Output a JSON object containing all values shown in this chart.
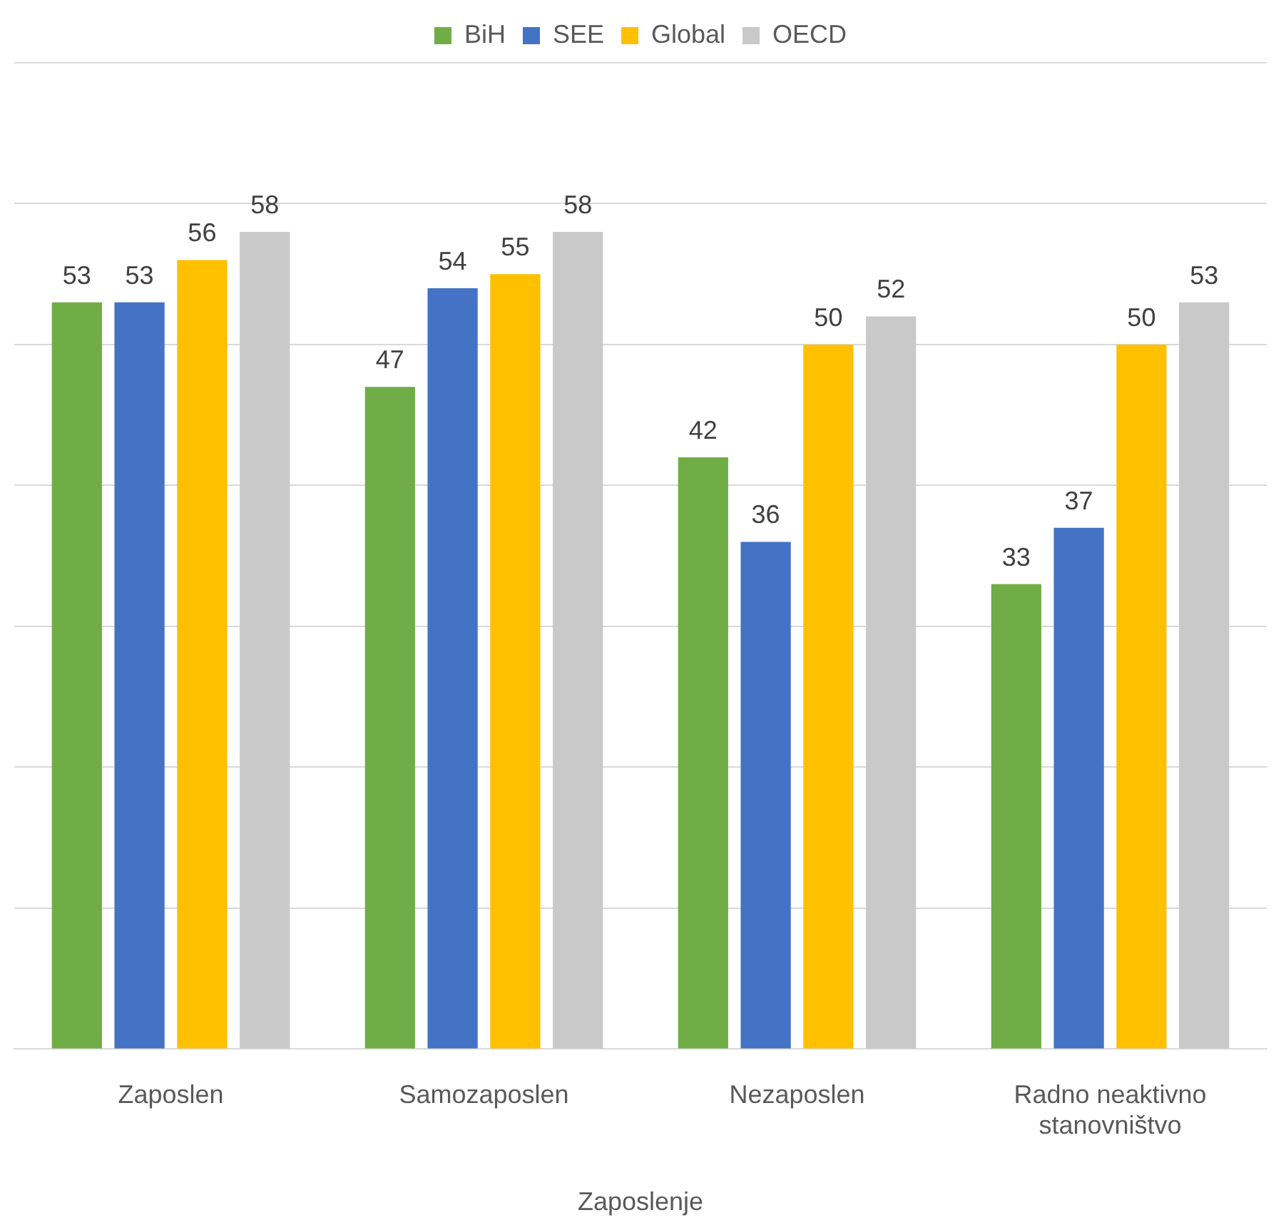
{
  "chart_data": {
    "type": "bar",
    "categories": [
      "Zaposlen",
      "Samozaposlen",
      "Nezaposlen",
      "Radno neaktivno stanovništvo"
    ],
    "series": [
      {
        "name": "BiH",
        "color": "#70ad47",
        "values": [
          53,
          47,
          42,
          33
        ]
      },
      {
        "name": "SEE",
        "color": "#4472c4",
        "values": [
          53,
          54,
          36,
          37
        ]
      },
      {
        "name": "Global",
        "color": "#ffc000",
        "values": [
          56,
          55,
          50,
          50
        ]
      },
      {
        "name": "OECD",
        "color": "#c9c9c9",
        "values": [
          58,
          58,
          52,
          53
        ]
      }
    ],
    "xlabel": "Zaposlenje",
    "ylim": [
      0,
      70
    ],
    "yticks": [
      {
        "value": 0,
        "label": null
      },
      {
        "value": 10,
        "label": null
      },
      {
        "value": 20,
        "label": null
      },
      {
        "value": 30,
        "label": null
      },
      {
        "value": 40,
        "label": null
      },
      {
        "value": 50,
        "label": null
      },
      {
        "value": 60,
        "label": null
      },
      {
        "value": 70,
        "label": null
      }
    ],
    "tick_labels": "x",
    "grid": "y",
    "legend": "top",
    "data_labels": true
  }
}
